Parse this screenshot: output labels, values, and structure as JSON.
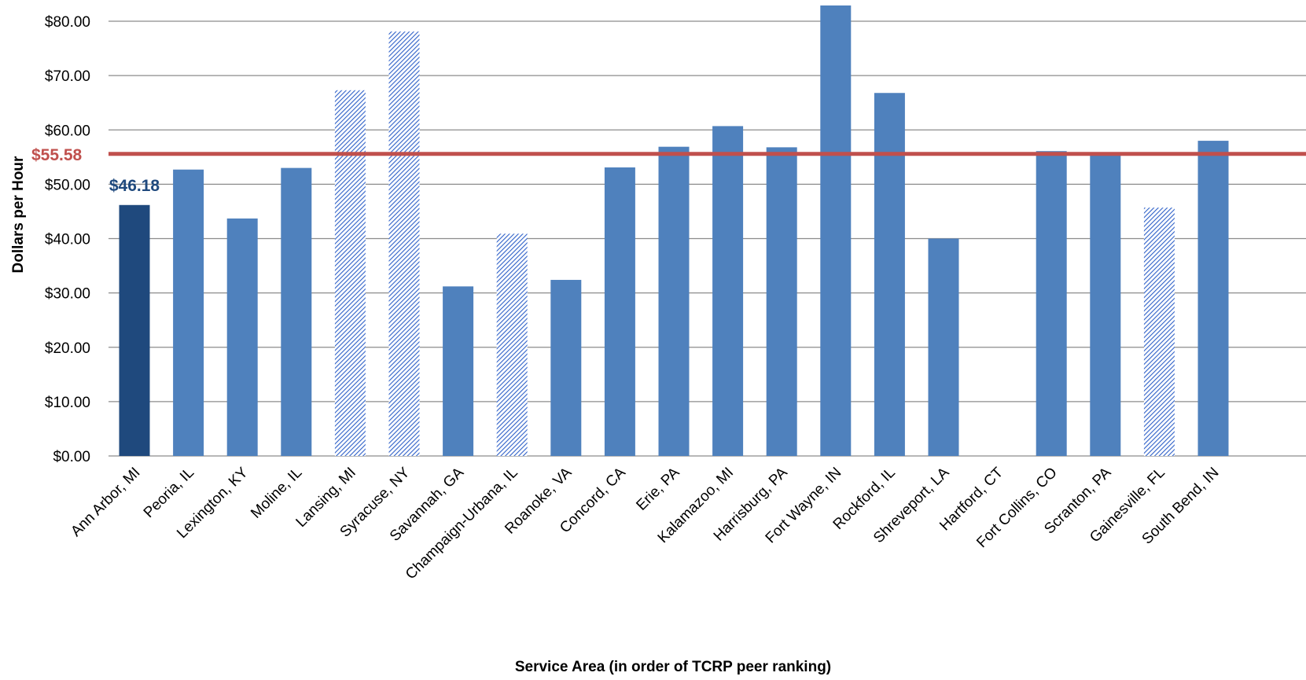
{
  "chart_data": {
    "type": "bar",
    "title": "",
    "xlabel": "Service Area (in order of TCRP peer ranking)",
    "ylabel": "Dollars per Hour",
    "ylim": [
      0,
      80
    ],
    "yticks": [
      0,
      10,
      20,
      30,
      40,
      50,
      60,
      70,
      80
    ],
    "ytick_labels": [
      "$0.00",
      "$10.00",
      "$20.00",
      "$30.00",
      "$40.00",
      "$50.00",
      "$60.00",
      "$70.00",
      "$80.00"
    ],
    "grid": true,
    "legend": "none",
    "categories": [
      "Ann Arbor, MI",
      "Peoria, IL",
      "Lexington, KY",
      "Moline, IL",
      "Lansing, MI",
      "Syracuse, NY",
      "Savannah, GA",
      "Champaign-Urbana, IL",
      "Roanoke, VA",
      "Concord, CA",
      "Erie, PA",
      "Kalamazoo, MI",
      "Harrisburg, PA",
      "Fort Wayne, IN",
      "Rockford, IL",
      "Shreveport, LA",
      "Hartford, CT",
      "Fort Collins, CO",
      "Scranton, PA",
      "Gainesville, FL",
      "South Bend, IN"
    ],
    "values": [
      46.18,
      52.7,
      43.7,
      53.0,
      67.3,
      78.1,
      31.2,
      40.9,
      32.4,
      53.1,
      56.9,
      60.7,
      56.8,
      82.9,
      66.8,
      40.0,
      null,
      56.1,
      55.5,
      45.7,
      58.0
    ],
    "styles": [
      "highlight",
      "solid",
      "solid",
      "solid",
      "hatched",
      "hatched",
      "solid",
      "hatched",
      "solid",
      "solid",
      "solid",
      "solid",
      "solid",
      "solid",
      "solid",
      "solid",
      "solid",
      "solid",
      "solid",
      "hatched",
      "solid"
    ],
    "reference_line": {
      "value": 55.58,
      "label": "$55.58",
      "color": "#c0504d"
    },
    "annotations": [
      {
        "category": "Ann Arbor, MI",
        "label": "$46.18",
        "color": "#1f497d"
      }
    ],
    "colors": {
      "solid": "#4f81bd",
      "highlight": "#1f497d",
      "hatched": "#2e60c8",
      "grid": "#8c8c8c"
    }
  }
}
